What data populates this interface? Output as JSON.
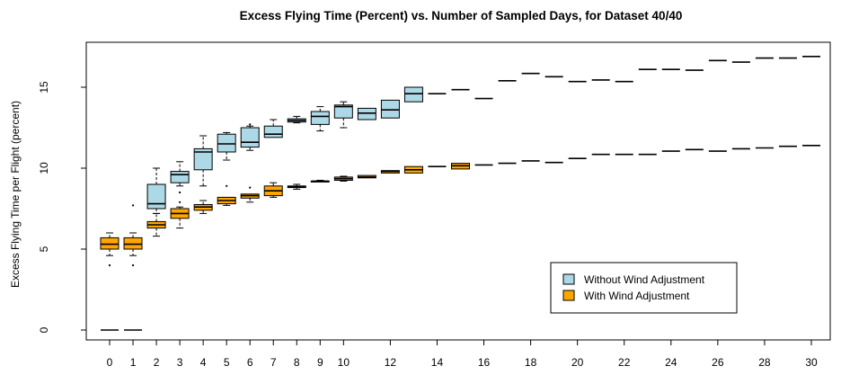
{
  "chart_data": {
    "type": "boxplot",
    "title": "Excess Flying Time (Percent) vs. Number of Sampled Days, for Dataset 40/40",
    "xlabel": "",
    "ylabel": "Excess Flying Time per Flight (percent)",
    "ylim": [
      -0.5,
      17.5
    ],
    "yticks": [
      0,
      5,
      10,
      15
    ],
    "xlim": [
      -0.5,
      31
    ],
    "xticks": [
      0,
      1,
      2,
      3,
      4,
      5,
      6,
      7,
      8,
      9,
      10,
      12,
      14,
      16,
      18,
      20,
      22,
      24,
      26,
      28,
      30
    ],
    "grid": false,
    "legend_position": "bottom-right",
    "colors": {
      "without": "#add8e6",
      "with": "#ffa500",
      "axis": "#000000"
    },
    "series": [
      {
        "name": "Without Wind Adjustment",
        "boxes": [
          {
            "x": 0,
            "min": 0,
            "q1": 0,
            "median": 0,
            "q3": 0,
            "max": 0,
            "outliers": []
          },
          {
            "x": 1,
            "min": 0,
            "q1": 0,
            "median": 0,
            "q3": 0,
            "max": 0,
            "outliers": []
          },
          {
            "x": 2,
            "min": 7.2,
            "q1": 7.5,
            "median": 7.8,
            "q3": 9.0,
            "max": 10.0,
            "outliers": []
          },
          {
            "x": 3,
            "min": 8.9,
            "q1": 9.1,
            "median": 9.6,
            "q3": 9.8,
            "max": 10.4,
            "outliers": [
              8.5
            ]
          },
          {
            "x": 4,
            "min": 8.9,
            "q1": 9.9,
            "median": 11.0,
            "q3": 11.2,
            "max": 12.0,
            "outliers": []
          },
          {
            "x": 5,
            "min": 10.5,
            "q1": 11.0,
            "median": 11.5,
            "q3": 12.1,
            "max": 12.2,
            "outliers": []
          },
          {
            "x": 6,
            "min": 11.1,
            "q1": 11.3,
            "median": 11.6,
            "q3": 12.5,
            "max": 12.6,
            "outliers": [
              12.7
            ]
          },
          {
            "x": 7,
            "min": 11.9,
            "q1": 11.9,
            "median": 12.1,
            "q3": 12.6,
            "max": 13.0,
            "outliers": []
          },
          {
            "x": 8,
            "min": 12.8,
            "q1": 12.85,
            "median": 12.95,
            "q3": 13.05,
            "max": 13.2,
            "outliers": []
          },
          {
            "x": 9,
            "min": 12.3,
            "q1": 12.7,
            "median": 13.2,
            "q3": 13.5,
            "max": 13.8,
            "outliers": []
          },
          {
            "x": 10,
            "min": 12.5,
            "q1": 13.1,
            "median": 13.8,
            "q3": 13.9,
            "max": 14.1,
            "outliers": []
          },
          {
            "x": 11,
            "min": 13.0,
            "q1": 13.0,
            "median": 13.4,
            "q3": 13.7,
            "max": 13.7,
            "outliers": []
          },
          {
            "x": 12,
            "min": 13.1,
            "q1": 13.1,
            "median": 13.6,
            "q3": 14.2,
            "max": 14.2,
            "outliers": []
          },
          {
            "x": 13,
            "min": 14.1,
            "q1": 14.1,
            "median": 14.6,
            "q3": 15.0,
            "max": 15.0,
            "outliers": []
          },
          {
            "x": 14,
            "min": 14.6,
            "q1": 14.6,
            "median": 14.6,
            "q3": 14.6,
            "max": 14.6,
            "outliers": []
          },
          {
            "x": 15,
            "min": 14.85,
            "q1": 14.85,
            "median": 14.85,
            "q3": 14.85,
            "max": 14.85,
            "outliers": []
          },
          {
            "x": 16,
            "min": 14.3,
            "q1": 14.3,
            "median": 14.3,
            "q3": 14.3,
            "max": 14.3,
            "outliers": []
          },
          {
            "x": 17,
            "min": 15.4,
            "q1": 15.4,
            "median": 15.4,
            "q3": 15.4,
            "max": 15.4,
            "outliers": []
          },
          {
            "x": 18,
            "min": 15.85,
            "q1": 15.85,
            "median": 15.85,
            "q3": 15.85,
            "max": 15.85,
            "outliers": []
          },
          {
            "x": 19,
            "min": 15.65,
            "q1": 15.65,
            "median": 15.65,
            "q3": 15.65,
            "max": 15.65,
            "outliers": []
          },
          {
            "x": 20,
            "min": 15.35,
            "q1": 15.35,
            "median": 15.35,
            "q3": 15.35,
            "max": 15.35,
            "outliers": []
          },
          {
            "x": 21,
            "min": 15.45,
            "q1": 15.45,
            "median": 15.45,
            "q3": 15.45,
            "max": 15.45,
            "outliers": []
          },
          {
            "x": 22,
            "min": 15.35,
            "q1": 15.35,
            "median": 15.35,
            "q3": 15.35,
            "max": 15.35,
            "outliers": []
          },
          {
            "x": 23,
            "min": 16.1,
            "q1": 16.1,
            "median": 16.1,
            "q3": 16.1,
            "max": 16.1,
            "outliers": []
          },
          {
            "x": 24,
            "min": 16.1,
            "q1": 16.1,
            "median": 16.1,
            "q3": 16.1,
            "max": 16.1,
            "outliers": []
          },
          {
            "x": 25,
            "min": 16.05,
            "q1": 16.05,
            "median": 16.05,
            "q3": 16.05,
            "max": 16.05,
            "outliers": []
          },
          {
            "x": 26,
            "min": 16.65,
            "q1": 16.65,
            "median": 16.65,
            "q3": 16.65,
            "max": 16.65,
            "outliers": []
          },
          {
            "x": 27,
            "min": 16.55,
            "q1": 16.55,
            "median": 16.55,
            "q3": 16.55,
            "max": 16.55,
            "outliers": []
          },
          {
            "x": 28,
            "min": 16.8,
            "q1": 16.8,
            "median": 16.8,
            "q3": 16.8,
            "max": 16.8,
            "outliers": []
          },
          {
            "x": 29,
            "min": 16.8,
            "q1": 16.8,
            "median": 16.8,
            "q3": 16.8,
            "max": 16.8,
            "outliers": []
          },
          {
            "x": 30,
            "min": 16.9,
            "q1": 16.9,
            "median": 16.9,
            "q3": 16.9,
            "max": 16.9,
            "outliers": []
          }
        ]
      },
      {
        "name": "With Wind Adjustment",
        "boxes": [
          {
            "x": 0,
            "min": 4.6,
            "q1": 5.0,
            "median": 5.3,
            "q3": 5.7,
            "max": 6.0,
            "outliers": [
              4.0
            ]
          },
          {
            "x": 1,
            "min": 4.6,
            "q1": 5.0,
            "median": 5.3,
            "q3": 5.7,
            "max": 6.0,
            "outliers": [
              4.0,
              7.7
            ]
          },
          {
            "x": 2,
            "min": 5.8,
            "q1": 6.3,
            "median": 6.5,
            "q3": 6.7,
            "max": 7.2,
            "outliers": []
          },
          {
            "x": 3,
            "min": 6.3,
            "q1": 6.9,
            "median": 7.2,
            "q3": 7.5,
            "max": 7.6,
            "outliers": [
              7.9
            ]
          },
          {
            "x": 4,
            "min": 7.2,
            "q1": 7.4,
            "median": 7.6,
            "q3": 7.75,
            "max": 8.0,
            "outliers": []
          },
          {
            "x": 5,
            "min": 7.7,
            "q1": 7.8,
            "median": 8.0,
            "q3": 8.2,
            "max": 8.2,
            "outliers": [
              8.9
            ]
          },
          {
            "x": 6,
            "min": 7.9,
            "q1": 8.15,
            "median": 8.3,
            "q3": 8.4,
            "max": 8.4,
            "outliers": [
              8.8
            ]
          },
          {
            "x": 7,
            "min": 8.2,
            "q1": 8.3,
            "median": 8.6,
            "q3": 8.9,
            "max": 9.1,
            "outliers": []
          },
          {
            "x": 8,
            "min": 8.7,
            "q1": 8.8,
            "median": 8.85,
            "q3": 8.9,
            "max": 9.0,
            "outliers": []
          },
          {
            "x": 9,
            "min": 9.15,
            "q1": 9.15,
            "median": 9.2,
            "q3": 9.2,
            "max": 9.25,
            "outliers": []
          },
          {
            "x": 10,
            "min": 9.2,
            "q1": 9.25,
            "median": 9.35,
            "q3": 9.45,
            "max": 9.5,
            "outliers": []
          },
          {
            "x": 11,
            "min": 9.4,
            "q1": 9.4,
            "median": 9.45,
            "q3": 9.55,
            "max": 9.55,
            "outliers": []
          },
          {
            "x": 12,
            "min": 9.7,
            "q1": 9.7,
            "median": 9.8,
            "q3": 9.85,
            "max": 9.85,
            "outliers": []
          },
          {
            "x": 13,
            "min": 9.7,
            "q1": 9.7,
            "median": 9.9,
            "q3": 10.1,
            "max": 10.1,
            "outliers": []
          },
          {
            "x": 14,
            "min": 10.1,
            "q1": 10.1,
            "median": 10.1,
            "q3": 10.1,
            "max": 10.1,
            "outliers": []
          },
          {
            "x": 15,
            "min": 9.95,
            "q1": 9.95,
            "median": 10.15,
            "q3": 10.3,
            "max": 10.3,
            "outliers": []
          },
          {
            "x": 16,
            "min": 10.2,
            "q1": 10.2,
            "median": 10.2,
            "q3": 10.2,
            "max": 10.2,
            "outliers": []
          },
          {
            "x": 17,
            "min": 10.3,
            "q1": 10.3,
            "median": 10.3,
            "q3": 10.3,
            "max": 10.3,
            "outliers": []
          },
          {
            "x": 18,
            "min": 10.45,
            "q1": 10.45,
            "median": 10.45,
            "q3": 10.45,
            "max": 10.45,
            "outliers": []
          },
          {
            "x": 19,
            "min": 10.35,
            "q1": 10.35,
            "median": 10.35,
            "q3": 10.35,
            "max": 10.35,
            "outliers": []
          },
          {
            "x": 20,
            "min": 10.6,
            "q1": 10.6,
            "median": 10.6,
            "q3": 10.6,
            "max": 10.6,
            "outliers": []
          },
          {
            "x": 21,
            "min": 10.85,
            "q1": 10.85,
            "median": 10.85,
            "q3": 10.85,
            "max": 10.85,
            "outliers": []
          },
          {
            "x": 22,
            "min": 10.85,
            "q1": 10.85,
            "median": 10.85,
            "q3": 10.85,
            "max": 10.85,
            "outliers": []
          },
          {
            "x": 23,
            "min": 10.85,
            "q1": 10.85,
            "median": 10.85,
            "q3": 10.85,
            "max": 10.85,
            "outliers": []
          },
          {
            "x": 24,
            "min": 11.05,
            "q1": 11.05,
            "median": 11.05,
            "q3": 11.05,
            "max": 11.05,
            "outliers": []
          },
          {
            "x": 25,
            "min": 11.15,
            "q1": 11.15,
            "median": 11.15,
            "q3": 11.15,
            "max": 11.15,
            "outliers": []
          },
          {
            "x": 26,
            "min": 11.05,
            "q1": 11.05,
            "median": 11.05,
            "q3": 11.05,
            "max": 11.05,
            "outliers": []
          },
          {
            "x": 27,
            "min": 11.2,
            "q1": 11.2,
            "median": 11.2,
            "q3": 11.2,
            "max": 11.2,
            "outliers": []
          },
          {
            "x": 28,
            "min": 11.25,
            "q1": 11.25,
            "median": 11.25,
            "q3": 11.25,
            "max": 11.25,
            "outliers": []
          },
          {
            "x": 29,
            "min": 11.35,
            "q1": 11.35,
            "median": 11.35,
            "q3": 11.35,
            "max": 11.35,
            "outliers": []
          },
          {
            "x": 30,
            "min": 11.4,
            "q1": 11.4,
            "median": 11.4,
            "q3": 11.4,
            "max": 11.4,
            "outliers": []
          }
        ]
      }
    ]
  }
}
